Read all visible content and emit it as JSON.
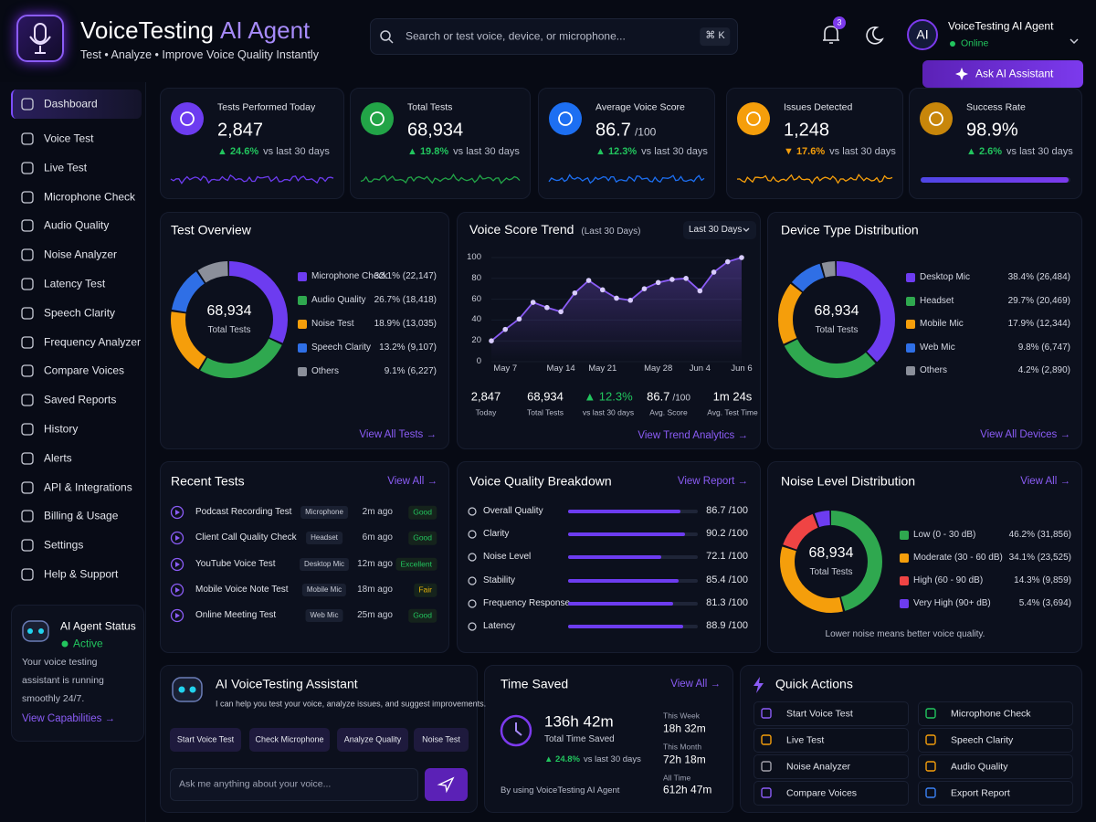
{
  "header": {
    "title": "VoiceTesting",
    "title_accent": "AI Agent",
    "subtitle": "Test • Analyze • Improve Voice Quality Instantly",
    "search_placeholder": "Search or test voice, device, or microphone...",
    "shortcut": "⌘ K",
    "notifications": 3,
    "avatar": "AI",
    "user_name": "VoiceTesting AI Agent",
    "user_status": "Online",
    "ask_button": "Ask AI Assistant"
  },
  "sidebar": {
    "items": [
      "Dashboard",
      "Voice Test",
      "Live Test",
      "Microphone Check",
      "Audio Quality",
      "Noise Analyzer",
      "Latency Test",
      "Speech Clarity",
      "Frequency Analyzer",
      "Compare Voices",
      "Saved Reports",
      "History",
      "Alerts",
      "API & Integrations",
      "Billing & Usage",
      "Settings",
      "Help & Support"
    ],
    "active": 0,
    "status_title": "AI Agent Status",
    "status": "Active",
    "status_text": "Your voice testing assistant is running smoothly 24/7.",
    "status_link": "View Capabilities →"
  },
  "kpis": [
    {
      "title": "Tests Performed Today",
      "value": "2,847",
      "change": "▲ 24.6%",
      "change_color": "#22c55e",
      "note": "vs last 30 days",
      "color": "#6d3cf0"
    },
    {
      "title": "Total Tests",
      "value": "68,934",
      "change": "▲ 19.8%",
      "change_color": "#22c55e",
      "note": "vs last 30 days",
      "color": "#22a447"
    },
    {
      "title": "Average Voice Score",
      "value": "86.7",
      "suffix": "/100",
      "change": "▲ 12.3%",
      "change_color": "#22c55e",
      "note": "vs last 30 days",
      "color": "#1d6ff2"
    },
    {
      "title": "Issues Detected",
      "value": "1,248",
      "change": "▼ 17.6%",
      "change_color": "#f59e0b",
      "note": "vs last 30 days",
      "color": "#f59e0b"
    },
    {
      "title": "Success Rate",
      "value": "98.9%",
      "change": "▲ 2.6%",
      "change_color": "#22c55e",
      "note": "vs last 30 days",
      "color": "#c8860a",
      "progress": 98.9
    }
  ],
  "overview": {
    "title": "Test Overview",
    "center_value": "68,934",
    "center_label": "Total Tests",
    "link": "View All Tests →",
    "segments": {
      "type": "donut",
      "names": [
        "Microphone Check",
        "Audio Quality",
        "Noise Test",
        "Speech Clarity",
        "Others"
      ],
      "values": [
        32.1,
        26.7,
        18.9,
        13.2,
        9.1
      ],
      "value_labels": [
        "32.1% (22,147)",
        "26.7% (18,418)",
        "18.9% (13,035)",
        "13.2% (9,107)",
        "9.1% (6,227)"
      ],
      "colors": [
        "#6d3cf0",
        "#2fa84f",
        "#f59e0b",
        "#2f6fe6",
        "#8b8f9a"
      ]
    }
  },
  "trend": {
    "title": "Voice Score Trend",
    "subtitle": "(Last 30 Days)",
    "range_selector": "Last 30 Days",
    "link": "View Trend Analytics →",
    "chart": {
      "type": "line",
      "categories": [
        null,
        "May 7",
        null,
        null,
        null,
        "May 14",
        null,
        null,
        "May 21",
        null,
        null,
        null,
        "May 28",
        null,
        null,
        "Jun 4",
        null,
        null,
        "Jun 6"
      ],
      "values": [
        20,
        31,
        41,
        57,
        52,
        48,
        66,
        78,
        69,
        61,
        59,
        70,
        76,
        79,
        80,
        68,
        86,
        96,
        100
      ],
      "color": "#8b5cf6",
      "ylim": [
        0,
        100
      ],
      "yticks": [
        0,
        20,
        40,
        60,
        80,
        100
      ],
      "grid": true
    },
    "stats": [
      {
        "value": "2,847",
        "label": "Today"
      },
      {
        "value": "68,934",
        "label": "Total Tests"
      },
      {
        "value": "▲ 12.3%",
        "label": "vs last 30 days",
        "color": "#22c55e"
      },
      {
        "value": "86.7",
        "suffix": "/100",
        "label": "Avg. Score"
      },
      {
        "value": "1m 24s",
        "label": "Avg. Test Time"
      }
    ]
  },
  "devices": {
    "title": "Device Type Distribution",
    "center_value": "68,934",
    "center_label": "Total Tests",
    "link": "View All Devices →",
    "segments": {
      "type": "donut",
      "names": [
        "Desktop Mic",
        "Headset",
        "Mobile Mic",
        "Web Mic",
        "Others"
      ],
      "values": [
        38.4,
        29.7,
        17.9,
        9.8,
        4.2
      ],
      "value_labels": [
        "38.4% (26,484)",
        "29.7% (20,469)",
        "17.9% (12,344)",
        "9.8% (6,747)",
        "4.2% (2,890)"
      ],
      "colors": [
        "#6d3cf0",
        "#2fa84f",
        "#f59e0b",
        "#2f6fe6",
        "#8b8f9a"
      ]
    }
  },
  "recent": {
    "title": "Recent Tests",
    "link": "View All →",
    "rows": [
      {
        "name": "Podcast Recording Test",
        "device": "Microphone",
        "time": "2m ago",
        "status": "Good",
        "status_color": "#22c55e"
      },
      {
        "name": "Client Call Quality Check",
        "device": "Headset",
        "time": "6m ago",
        "status": "Good",
        "status_color": "#22c55e"
      },
      {
        "name": "YouTube Voice Test",
        "device": "Desktop Mic",
        "time": "12m ago",
        "status": "Excellent",
        "status_color": "#22c55e"
      },
      {
        "name": "Mobile Voice Note Test",
        "device": "Mobile Mic",
        "time": "18m ago",
        "status": "Fair",
        "status_color": "#eab308"
      },
      {
        "name": "Online Meeting Test",
        "device": "Web Mic",
        "time": "25m ago",
        "status": "Good",
        "status_color": "#22c55e"
      }
    ]
  },
  "quality": {
    "title": "Voice Quality Breakdown",
    "link": "View Report →",
    "bars": {
      "type": "bar",
      "categories": [
        "Overall Quality",
        "Clarity",
        "Noise Level",
        "Stability",
        "Frequency Response",
        "Latency"
      ],
      "values": [
        86.7,
        90.2,
        72.1,
        85.4,
        81.3,
        88.9
      ],
      "value_labels": [
        "86.7 /100",
        "90.2 /100",
        "72.1 /100",
        "85.4 /100",
        "81.3 /100",
        "88.9 /100"
      ],
      "xlim": [
        0,
        100
      ],
      "color": "#6d3cf0"
    }
  },
  "noise": {
    "title": "Noise Level Distribution",
    "link": "View All →",
    "center_value": "68,934",
    "center_label": "Total Tests",
    "footer": "Lower noise means better voice quality.",
    "segments": {
      "type": "donut",
      "names": [
        "Low (0 - 30 dB)",
        "Moderate (30 - 60 dB)",
        "High (60 - 90 dB)",
        "Very High (90+ dB)"
      ],
      "values": [
        46.2,
        34.1,
        14.3,
        5.4
      ],
      "value_labels": [
        "46.2% (31,856)",
        "34.1% (23,525)",
        "14.3% (9,859)",
        "5.4% (3,694)"
      ],
      "colors": [
        "#2fa84f",
        "#f59e0b",
        "#ef4444",
        "#6d3cf0"
      ]
    }
  },
  "assistant": {
    "title": "AI VoiceTesting Assistant",
    "subtitle": "I can help you test your voice, analyze issues, and suggest improvements.",
    "buttons": [
      "Start Voice Test",
      "Check Microphone",
      "Analyze Quality",
      "Noise Test"
    ],
    "input_placeholder": "Ask me anything about your voice..."
  },
  "time_saved": {
    "title": "Time Saved",
    "link": "View All →",
    "total": "136h 42m",
    "total_label": "Total Time Saved",
    "change": "▲ 24.8%",
    "change_note": "vs last 30 days",
    "footer": "By using VoiceTesting AI Agent",
    "breakdown": [
      {
        "label": "This Week",
        "value": "18h 32m"
      },
      {
        "label": "This Month",
        "value": "72h 18m"
      },
      {
        "label": "All Time",
        "value": "612h 47m"
      }
    ]
  },
  "quick_actions": {
    "title": "Quick Actions",
    "items": [
      {
        "label": "Start Voice Test",
        "color": "#8b5cf6"
      },
      {
        "label": "Microphone Check",
        "color": "#22c55e"
      },
      {
        "label": "Live Test",
        "color": "#f59e0b"
      },
      {
        "label": "Speech Clarity",
        "color": "#f59e0b"
      },
      {
        "label": "Noise Analyzer",
        "color": "#a1a1aa"
      },
      {
        "label": "Audio Quality",
        "color": "#f59e0b"
      },
      {
        "label": "Compare Voices",
        "color": "#8b5cf6"
      },
      {
        "label": "Export Report",
        "color": "#3b82f6"
      }
    ]
  }
}
